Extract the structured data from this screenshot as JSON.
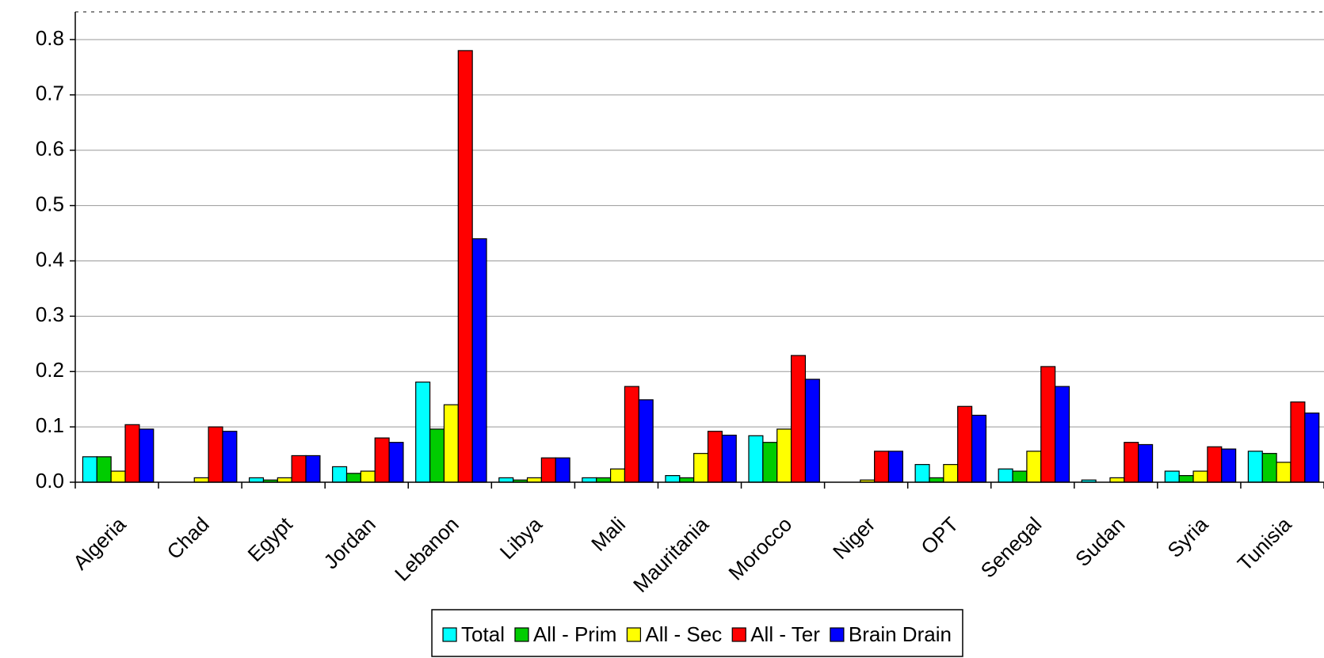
{
  "chart_data": {
    "type": "bar",
    "categories": [
      "Algeria",
      "Chad",
      "Egypt",
      "Jordan",
      "Lebanon",
      "Libya",
      "Mali",
      "Mauritania",
      "Morocco",
      "Niger",
      "OPT",
      "Senegal",
      "Sudan",
      "Syria",
      "Tunisia"
    ],
    "series": [
      {
        "name": "Total",
        "color": "#00ffff",
        "values": [
          0.046,
          0,
          0.008,
          0.028,
          0.181,
          0.008,
          0.008,
          0.012,
          0.084,
          0,
          0.032,
          0.024,
          0.004,
          0.02,
          0.056
        ]
      },
      {
        "name": "All - Prim",
        "color": "#00cc00",
        "values": [
          0.046,
          0,
          0.004,
          0.016,
          0.096,
          0.004,
          0.008,
          0.008,
          0.072,
          0,
          0.008,
          0.02,
          0,
          0.012,
          0.052
        ]
      },
      {
        "name": "All - Sec",
        "color": "#ffff00",
        "values": [
          0.02,
          0.008,
          0.008,
          0.02,
          0.14,
          0.008,
          0.024,
          0.052,
          0.096,
          0.004,
          0.032,
          0.056,
          0.008,
          0.02,
          0.036
        ]
      },
      {
        "name": "All - Ter",
        "color": "#ff0000",
        "values": [
          0.104,
          0.1,
          0.048,
          0.08,
          0.78,
          0.044,
          0.173,
          0.092,
          0.229,
          0.056,
          0.137,
          0.209,
          0.072,
          0.064,
          0.145
        ]
      },
      {
        "name": "Brain Drain",
        "color": "#0000ff",
        "values": [
          0.096,
          0.092,
          0.048,
          0.072,
          0.44,
          0.044,
          0.149,
          0.085,
          0.186,
          0.056,
          0.121,
          0.173,
          0.068,
          0.06,
          0.125
        ]
      }
    ],
    "ylim": [
      0,
      0.85
    ],
    "yticks": [
      {
        "value": 0,
        "label": "0.0"
      },
      0.1,
      0.2,
      0.3,
      0.4,
      0.5,
      0.6,
      0.7,
      0.8
    ],
    "grid": true,
    "legend": "bottom"
  }
}
